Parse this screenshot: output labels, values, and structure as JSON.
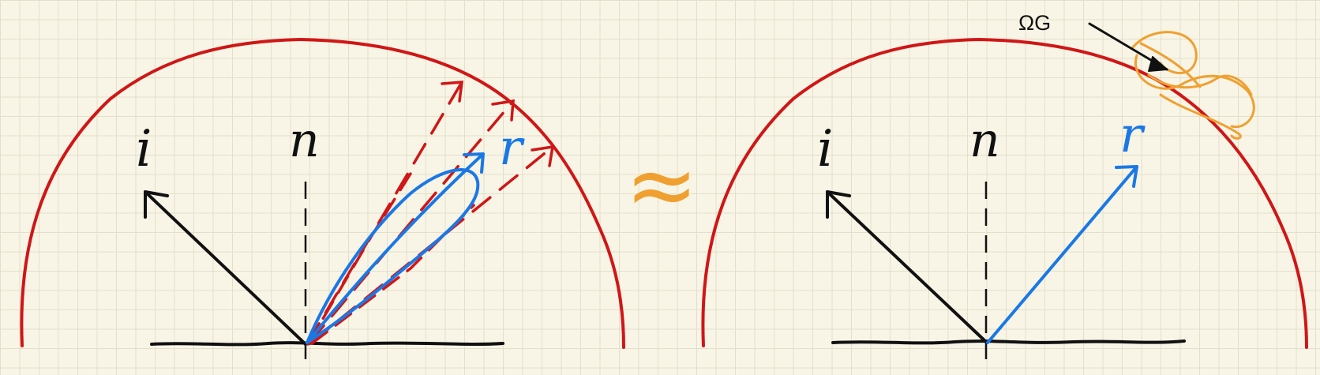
{
  "colors": {
    "hemisphere": "#d01616",
    "incident": "#111111",
    "reflection": "#1a78e6",
    "sampled_rays": "#d01616",
    "approx_symbol": "#f0a030",
    "region": "#f0a030",
    "surface": "#111111"
  },
  "left_panel": {
    "incident_label": "i",
    "normal_label": "n",
    "reflect_label": "r"
  },
  "approx_label": "≈",
  "right_panel": {
    "incident_label": "i",
    "normal_label": "n",
    "reflect_label": "r",
    "region_label": "ΩG"
  }
}
